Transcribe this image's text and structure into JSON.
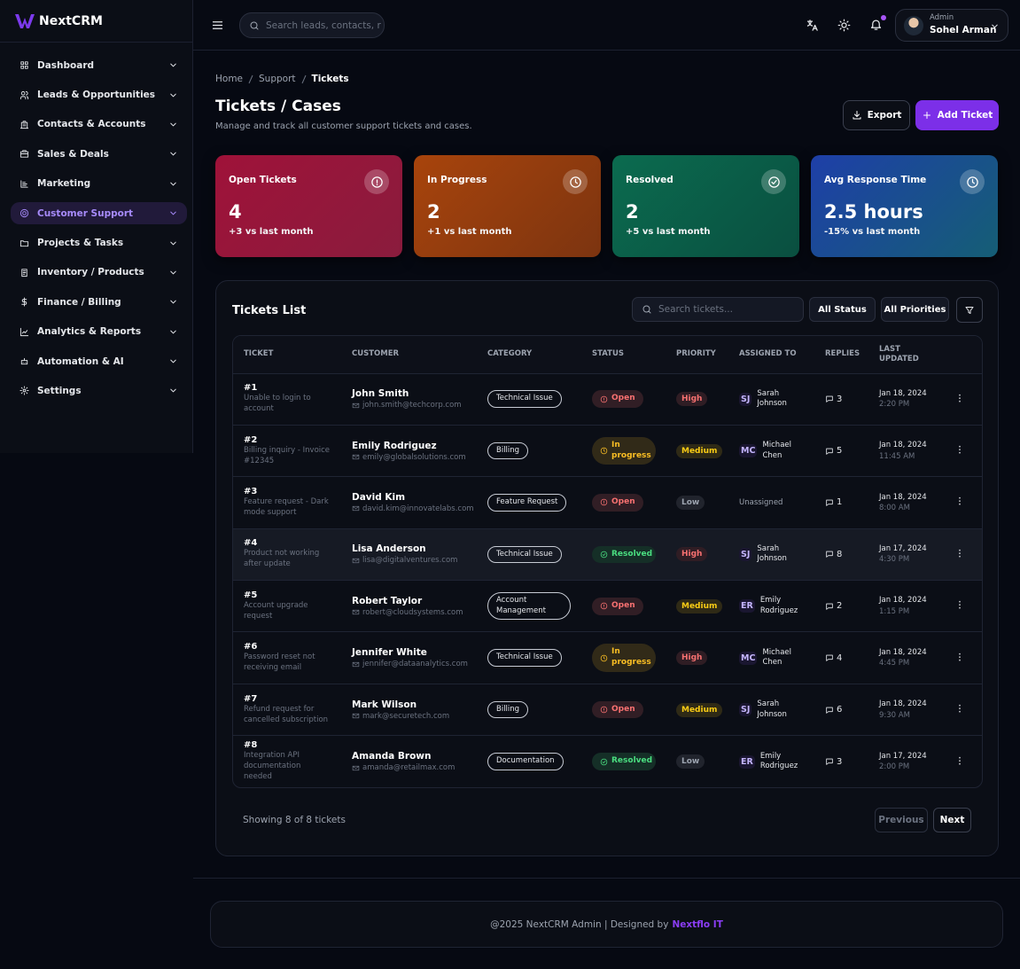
{
  "sidebar": {
    "brand": "NextCRM",
    "menu": [
      "Dashboard",
      "Leads & Opportunities",
      "Contacts & Accounts",
      "Sales & Deals",
      "Marketing",
      "Customer Support",
      "Projects & Tasks",
      "Inventory / Products",
      "Finance / Billing",
      "Analytics & Reports",
      "Automation & AI",
      "Settings"
    ]
  },
  "topbar": {
    "search_placeholder": "Search leads, contacts, r",
    "user_role": "Admin",
    "user_name": "Sohel Arman"
  },
  "header": {
    "breadcrumb": [
      "Home",
      "Support",
      "Tickets"
    ],
    "title": "Tickets / Cases",
    "subtitle": "Manage and track all customer support tickets and cases.",
    "buttons": [
      "Export",
      "Add Ticket"
    ]
  },
  "stats": [
    {
      "title": "Open Tickets",
      "value": 4,
      "change": "+3 vs last month",
      "colors": [
        "#9f1239",
        "#8a1c3d"
      ]
    },
    {
      "title": "In Progress",
      "value": 2,
      "change": "+1 vs last month",
      "colors": [
        "#a8440c",
        "#7c3410"
      ]
    },
    {
      "title": "Resolved",
      "value": 2,
      "change": "+5 vs last month",
      "colors": [
        "#0b6b4f",
        "#0a4f40"
      ]
    },
    {
      "title": "Avg Response Time",
      "value": "2.5 hours",
      "change": "-15% vs last month",
      "colors": [
        "#1e3fa8",
        "#155e75"
      ]
    }
  ],
  "table": {
    "title": "Tickets List",
    "search_placeholder": "Search tickets...",
    "filters": [
      "All Status",
      "All Priorities"
    ],
    "columns": [
      "TICKET",
      "CUSTOMER",
      "CATEGORY",
      "STATUS",
      "PRIORITY",
      "ASSIGNED TO",
      "REPLIES",
      "LAST UPDATED"
    ],
    "status_colors": {
      "Open": "#f87171",
      "In progress": "#fbbf24",
      "Resolved": "#4ade80"
    },
    "priority_colors": {
      "High": "#f87171",
      "Medium": "#facc15",
      "Low": "#9ca3af"
    },
    "rows": [
      {
        "id": "#1",
        "subject": "Unable to login to account",
        "customer": "John Smith",
        "email": "john.smith@techcorp.com",
        "category": "Technical Issue",
        "status": "Open",
        "priority": "High",
        "initials": "SJ",
        "assignee": "Sarah Johnson",
        "replies": 3,
        "date": "Jan 18, 2024",
        "time": "2:20 PM"
      },
      {
        "id": "#2",
        "subject": "Billing inquiry - Invoice #12345",
        "customer": "Emily Rodriguez",
        "email": "emily@globalsolutions.com",
        "category": "Billing",
        "status": "In progress",
        "priority": "Medium",
        "initials": "MC",
        "assignee": "Michael Chen",
        "replies": 5,
        "date": "Jan 18, 2024",
        "time": "11:45 AM"
      },
      {
        "id": "#3",
        "subject": "Feature request - Dark mode support",
        "customer": "David Kim",
        "email": "david.kim@innovatelabs.com",
        "category": "Feature Request",
        "status": "Open",
        "priority": "Low",
        "assignee": "Unassigned",
        "replies": 1,
        "date": "Jan 18, 2024",
        "time": "8:00 AM"
      },
      {
        "id": "#4",
        "subject": "Product not working after update",
        "customer": "Lisa Anderson",
        "email": "lisa@digitalventures.com",
        "category": "Technical Issue",
        "status": "Resolved",
        "priority": "High",
        "initials": "SJ",
        "assignee": "Sarah Johnson",
        "replies": 8,
        "date": "Jan 17, 2024",
        "time": "4:30 PM"
      },
      {
        "id": "#5",
        "subject": "Account upgrade request",
        "customer": "Robert Taylor",
        "email": "robert@cloudsystems.com",
        "category": "Account Management",
        "status": "Open",
        "priority": "Medium",
        "initials": "ER",
        "assignee": "Emily Rodriguez",
        "replies": 2,
        "date": "Jan 18, 2024",
        "time": "1:15 PM"
      },
      {
        "id": "#6",
        "subject": "Password reset not receiving email",
        "customer": "Jennifer White",
        "email": "jennifer@dataanalytics.com",
        "category": "Technical Issue",
        "status": "In progress",
        "priority": "High",
        "initials": "MC",
        "assignee": "Michael Chen",
        "replies": 4,
        "date": "Jan 18, 2024",
        "time": "4:45 PM"
      },
      {
        "id": "#7",
        "subject": "Refund request for cancelled subscription",
        "customer": "Mark Wilson",
        "email": "mark@securetech.com",
        "category": "Billing",
        "status": "Open",
        "priority": "Medium",
        "initials": "SJ",
        "assignee": "Sarah Johnson",
        "replies": 6,
        "date": "Jan 18, 2024",
        "time": "9:30 AM"
      },
      {
        "id": "#8",
        "subject": "Integration API documentation needed",
        "customer": "Amanda Brown",
        "email": "amanda@retailmax.com",
        "category": "Documentation",
        "status": "Resolved",
        "priority": "Low",
        "initials": "ER",
        "assignee": "Emily Rodriguez",
        "replies": 3,
        "date": "Jan 17, 2024",
        "time": "2:00 PM"
      }
    ],
    "showing": "Showing 8 of 8 tickets",
    "pagination": [
      "Previous",
      "Next"
    ]
  },
  "footer": {
    "text": "@2025 NextCRM Admin | Designed by",
    "link": "Nextflo IT"
  }
}
